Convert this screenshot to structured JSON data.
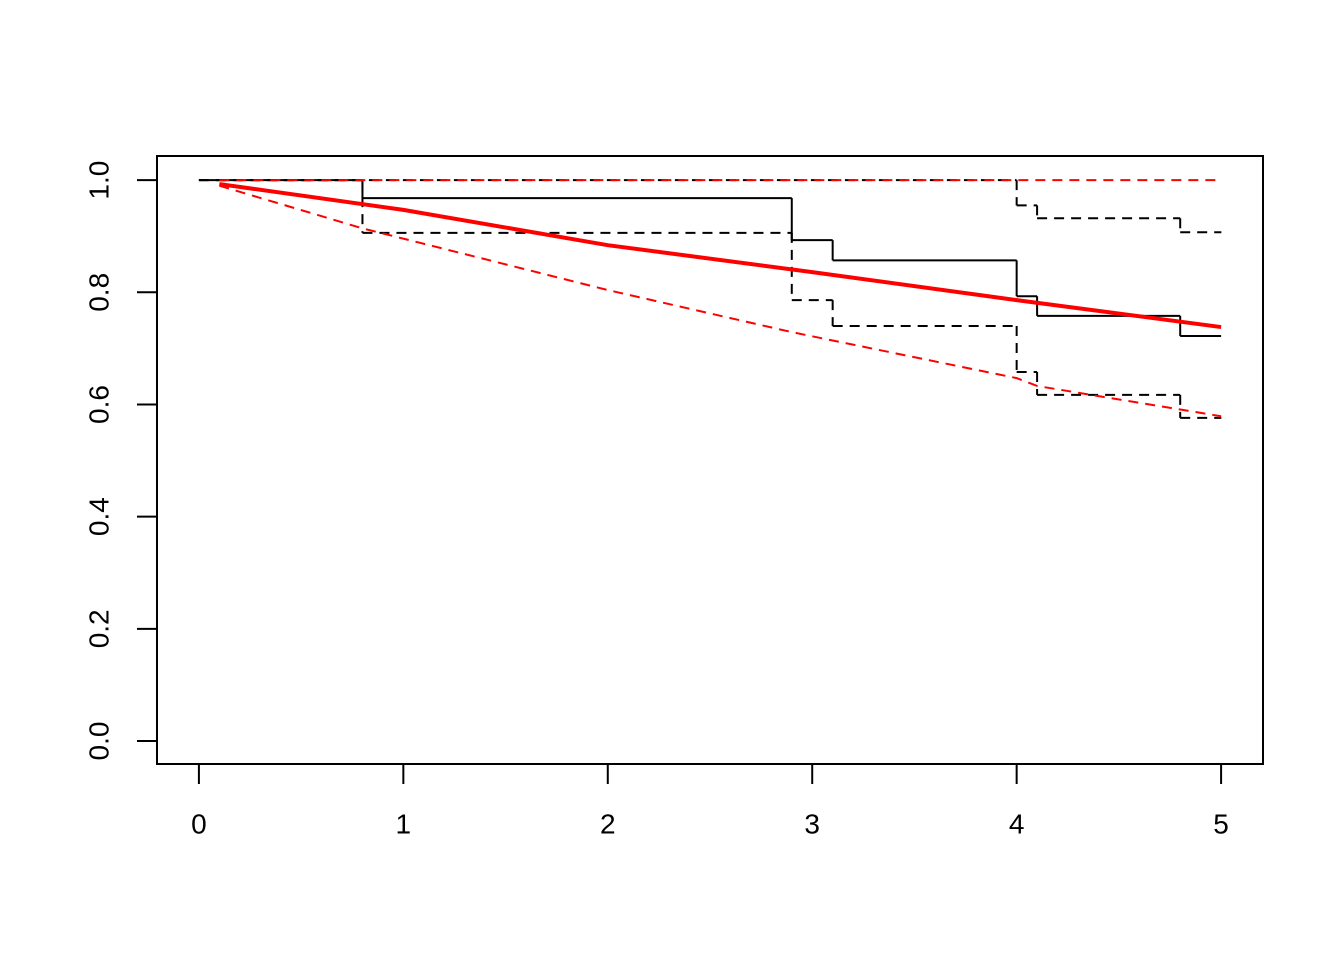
{
  "chart_data": {
    "type": "line",
    "xlim": [
      -0.205,
      5.205
    ],
    "ylim": [
      -0.041,
      1.043
    ],
    "xticks": [
      0,
      1,
      2,
      3,
      4,
      5
    ],
    "yticks": [
      {
        "value": 0,
        "label": "0.0"
      },
      0.2,
      0.4,
      0.6,
      0.8,
      {
        "value": 1,
        "label": "1.0"
      }
    ],
    "series": [
      {
        "color": "#000000",
        "dash": "none",
        "width": 2,
        "step": true,
        "x": [
          0,
          0.8,
          2.9,
          3.1,
          4.0,
          4.1,
          4.8,
          5.0
        ],
        "values": [
          1,
          0.968,
          0.893,
          0.857,
          0.793,
          0.758,
          0.722,
          0.722
        ]
      },
      {
        "color": "#000000",
        "dash": "dashed",
        "width": 2,
        "step": true,
        "x": [
          0,
          4.0,
          4.1,
          4.8,
          5.0
        ],
        "values": [
          1,
          0.955,
          0.932,
          0.907,
          0.907
        ]
      },
      {
        "color": "#000000",
        "dash": "dashed",
        "width": 2,
        "step": true,
        "x": [
          0,
          0.8,
          2.9,
          3.1,
          4.0,
          4.1,
          4.8,
          5.0
        ],
        "values": [
          1,
          0.906,
          0.786,
          0.74,
          0.658,
          0.617,
          0.576,
          0.576
        ]
      },
      {
        "color": "#ff0000",
        "dash": "none",
        "width": 4,
        "step": false,
        "x": [
          0.1,
          1,
          2,
          3,
          4,
          5
        ],
        "values": [
          0.993,
          0.947,
          0.884,
          0.836,
          0.786,
          0.738
        ]
      },
      {
        "color": "#ff0000",
        "dash": "dashed",
        "width": 2,
        "step": false,
        "x": [
          0.1,
          5
        ],
        "values": [
          1,
          1
        ]
      },
      {
        "color": "#ff0000",
        "dash": "dashed",
        "width": 2,
        "step": false,
        "x": [
          0.1,
          0.8,
          2,
          2.9,
          4,
          4.1,
          5
        ],
        "values": [
          0.99,
          0.914,
          0.804,
          0.729,
          0.647,
          0.633,
          0.579
        ]
      }
    ]
  }
}
